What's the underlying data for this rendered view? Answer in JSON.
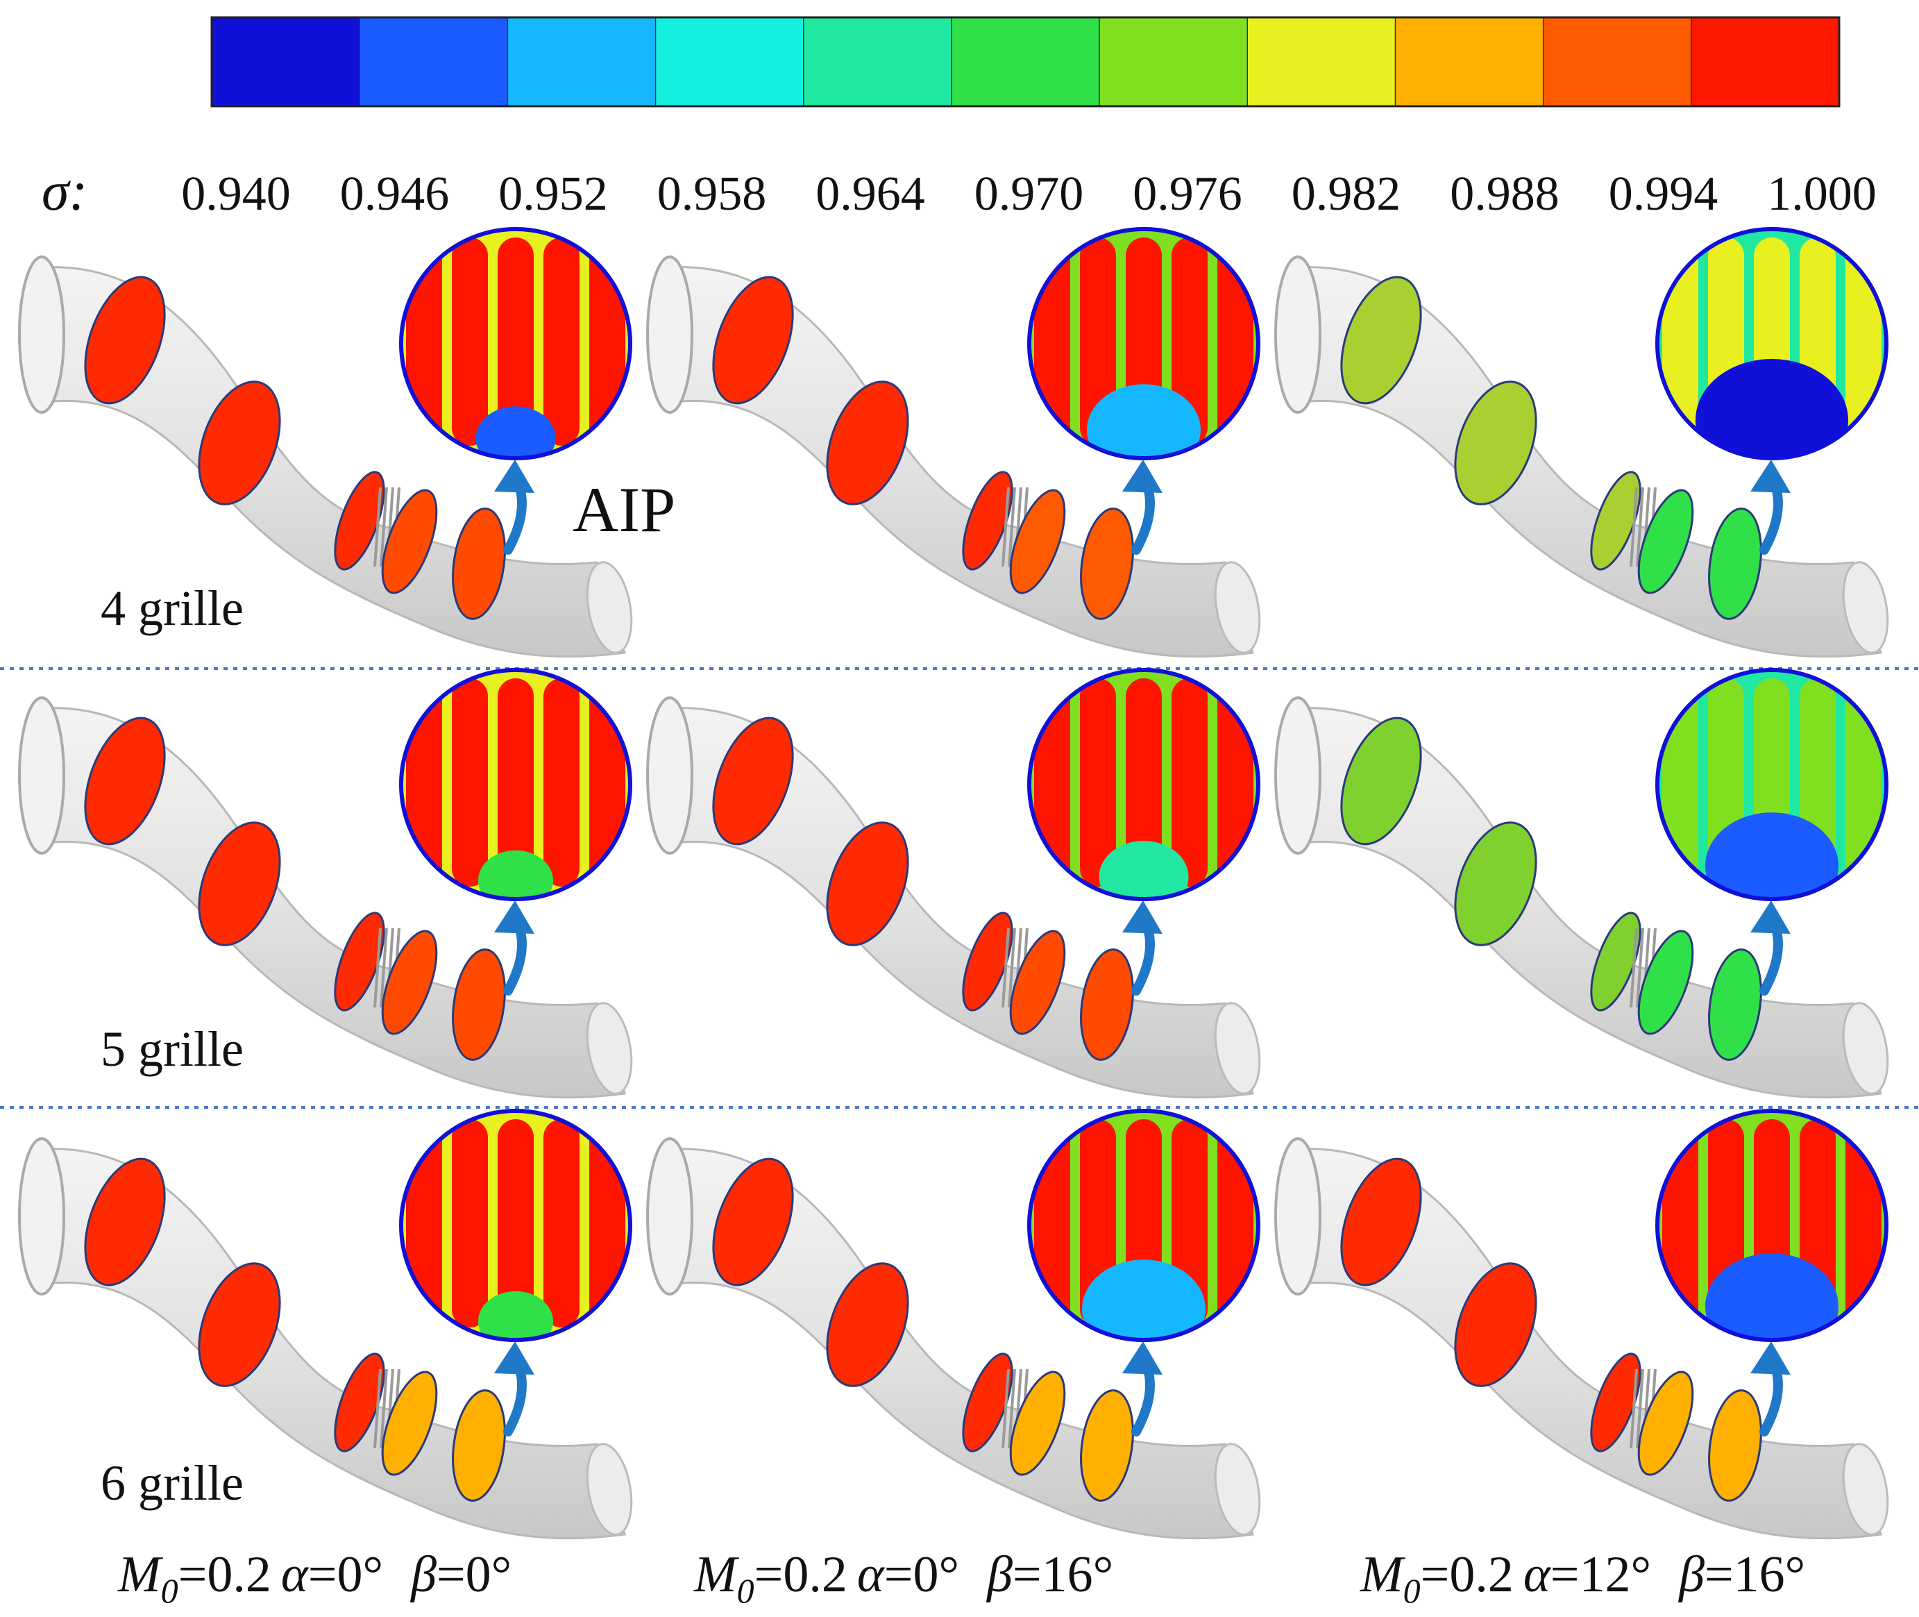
{
  "colorbar": {
    "symbol": "σ:",
    "ticks": [
      "0.940",
      "0.946",
      "0.952",
      "0.958",
      "0.964",
      "0.970",
      "0.976",
      "0.982",
      "0.988",
      "0.994",
      "1.000"
    ],
    "colors": [
      "#1010d8",
      "#1a5cff",
      "#15b8ff",
      "#14f0e0",
      "#20e8a0",
      "#30e048",
      "#80e020",
      "#e8f020",
      "#ffb000",
      "#ff5a00",
      "#ff1800"
    ]
  },
  "aip_label": "AIP",
  "rows": [
    {
      "label": "4 grille"
    },
    {
      "label": "5 grille"
    },
    {
      "label": "6 grille"
    }
  ],
  "columns": [
    {
      "m_sym": "M",
      "m_sub": "0",
      "m_val": "=0.2",
      "a_sym": "α",
      "a_val": "=0°",
      "b_sym": "β",
      "b_val": "=0°"
    },
    {
      "m_sym": "M",
      "m_sub": "0",
      "m_val": "=0.2",
      "a_sym": "α",
      "a_val": "=0°",
      "b_sym": "β",
      "b_val": "=16°"
    },
    {
      "m_sym": "M",
      "m_sub": "0",
      "m_val": "=0.2",
      "a_sym": "α",
      "a_val": "=12°",
      "b_sym": "β",
      "b_val": "=16°"
    }
  ],
  "cells": [
    {
      "row": 0,
      "col": 0,
      "aip_base": "#ff4a00",
      "stripe": "#ff1400",
      "trough": "#e8f020",
      "blob": "#1a5cff",
      "blob_size": 0.25,
      "sections": "#ff2a00"
    },
    {
      "row": 0,
      "col": 1,
      "aip_base": "#ff5a00",
      "stripe": "#ff1400",
      "trough": "#80e020",
      "blob": "#15b8ff",
      "blob_size": 0.6,
      "sections": "#ff2a00"
    },
    {
      "row": 0,
      "col": 2,
      "aip_base": "#30e048",
      "stripe": "#e8f020",
      "trough": "#20e8a0",
      "blob": "#1010d8",
      "blob_size": 1.0,
      "sections": "#a8d030"
    },
    {
      "row": 1,
      "col": 0,
      "aip_base": "#ff4a00",
      "stripe": "#ff1400",
      "trough": "#e8f020",
      "blob": "#30e048",
      "blob_size": 0.2,
      "sections": "#ff2a00"
    },
    {
      "row": 1,
      "col": 1,
      "aip_base": "#ff4a00",
      "stripe": "#ff1400",
      "trough": "#80e020",
      "blob": "#20e8a0",
      "blob_size": 0.35,
      "sections": "#ff2a00"
    },
    {
      "row": 1,
      "col": 2,
      "aip_base": "#30e048",
      "stripe": "#80e020",
      "trough": "#20e8a0",
      "blob": "#1a5cff",
      "blob_size": 0.8,
      "sections": "#80d030"
    },
    {
      "row": 2,
      "col": 0,
      "aip_base": "#ffb000",
      "stripe": "#ff1400",
      "trough": "#e8f020",
      "blob": "#30e048",
      "blob_size": 0.2,
      "sections": "#ff2a00"
    },
    {
      "row": 2,
      "col": 1,
      "aip_base": "#ffb000",
      "stripe": "#ff1400",
      "trough": "#80e020",
      "blob": "#15b8ff",
      "blob_size": 0.7,
      "sections": "#ff2a00"
    },
    {
      "row": 2,
      "col": 2,
      "aip_base": "#ffb000",
      "stripe": "#ff1400",
      "trough": "#80e020",
      "blob": "#1a5cff",
      "blob_size": 0.8,
      "sections": "#ff2a00"
    }
  ]
}
